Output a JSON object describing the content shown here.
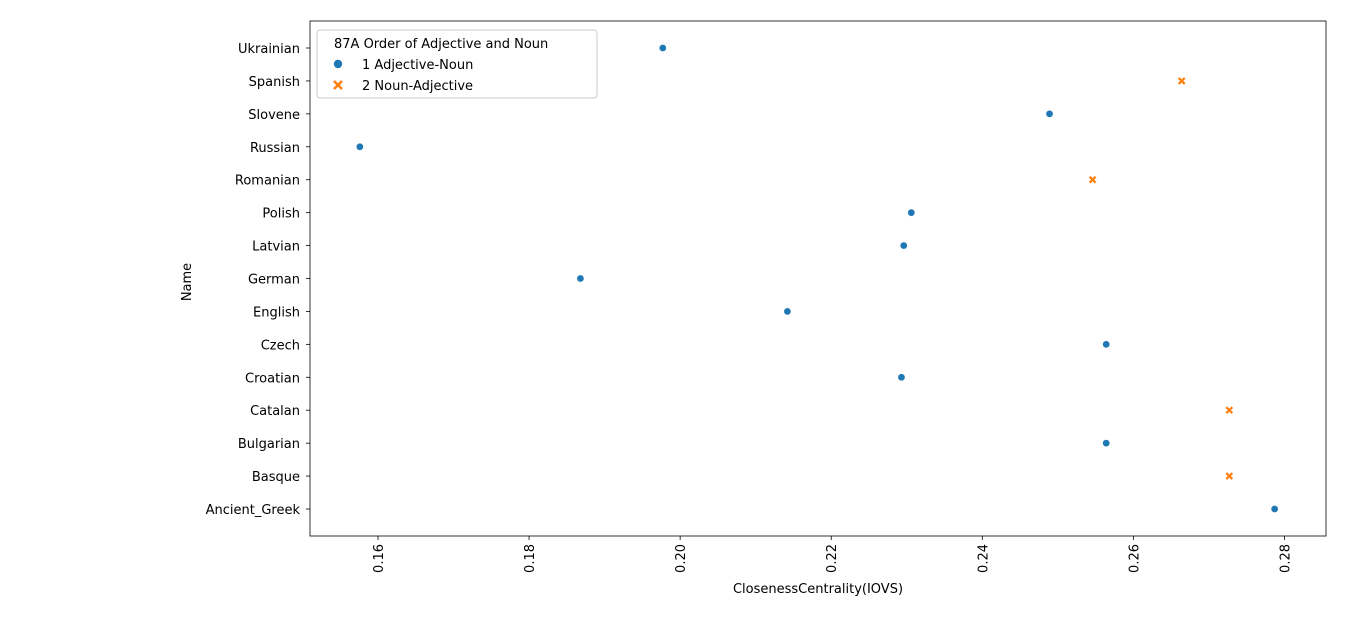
{
  "chart_data": {
    "type": "scatter",
    "title": "",
    "xlabel": "ClosenessCentrality(IOVS)",
    "ylabel": "Name",
    "xlim": [
      0.151,
      0.2855
    ],
    "xticks": [
      0.16,
      0.18,
      0.2,
      0.22,
      0.24,
      0.26,
      0.28
    ],
    "xtick_labels": [
      "0.16",
      "0.18",
      "0.20",
      "0.22",
      "0.24",
      "0.26",
      "0.28"
    ],
    "xtick_rotation": "vertical",
    "categories": [
      "Ukrainian",
      "Spanish",
      "Slovene",
      "Russian",
      "Romanian",
      "Polish",
      "Latvian",
      "German",
      "English",
      "Czech",
      "Croatian",
      "Catalan",
      "Bulgarian",
      "Basque",
      "Ancient_Greek"
    ],
    "legend": {
      "title": "87A Order of Adjective and Noun",
      "placement": "upper-left",
      "entries": [
        {
          "label": "1 Adjective-Noun",
          "color": "#1f77b4",
          "marker": "circle"
        },
        {
          "label": "2 Noun-Adjective",
          "color": "#ff7f0e",
          "marker": "x"
        }
      ]
    },
    "grid": false,
    "points": [
      {
        "name": "Ukrainian",
        "x": 0.1977,
        "group": 0
      },
      {
        "name": "Spanish",
        "x": 0.2664,
        "group": 1
      },
      {
        "name": "Slovene",
        "x": 0.2489,
        "group": 0
      },
      {
        "name": "Russian",
        "x": 0.1576,
        "group": 0
      },
      {
        "name": "Romanian",
        "x": 0.2546,
        "group": 1
      },
      {
        "name": "Polish",
        "x": 0.2306,
        "group": 0
      },
      {
        "name": "Latvian",
        "x": 0.2296,
        "group": 0
      },
      {
        "name": "German",
        "x": 0.1868,
        "group": 0
      },
      {
        "name": "English",
        "x": 0.2142,
        "group": 0
      },
      {
        "name": "Czech",
        "x": 0.2564,
        "group": 0
      },
      {
        "name": "Croatian",
        "x": 0.2293,
        "group": 0
      },
      {
        "name": "Catalan",
        "x": 0.2727,
        "group": 1
      },
      {
        "name": "Bulgarian",
        "x": 0.2564,
        "group": 0
      },
      {
        "name": "Basque",
        "x": 0.2727,
        "group": 1
      },
      {
        "name": "Ancient_Greek",
        "x": 0.2787,
        "group": 0
      }
    ]
  }
}
